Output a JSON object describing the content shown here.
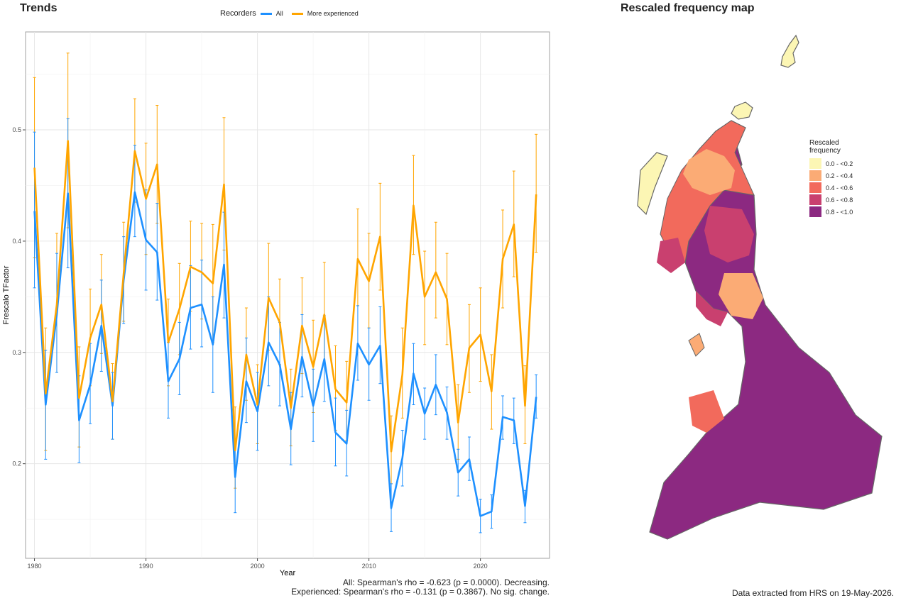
{
  "trends": {
    "title": "Trends",
    "legend_title": "Recorders",
    "series_all": "All",
    "series_exp": "More experienced"
  },
  "map": {
    "title": "Rescaled frequency map",
    "legend_title_line1": "Rescaled",
    "legend_title_line2": "frequency",
    "legend": [
      {
        "label": "0.0 - <0.2",
        "color": "#fcf6b4"
      },
      {
        "label": "0.2 - <0.4",
        "color": "#fbab75"
      },
      {
        "label": "0.4 - <0.6",
        "color": "#f26a5c"
      },
      {
        "label": "0.6 - <0.8",
        "color": "#c9406f"
      },
      {
        "label": "0.8 - <1.0",
        "color": "#8c2981"
      }
    ]
  },
  "footer": {
    "stats_all": "All: Spearman's rho = -0.623 (p = 0.0000). Decreasing.",
    "stats_exp": "Experienced: Spearman's rho = -0.131 (p = 0.3867). No sig. change.",
    "extracted": "Data extracted from HRS on 19-May-2026."
  },
  "chart_data": {
    "type": "line",
    "xlabel": "Year",
    "ylabel": "Frescalo TFactor",
    "xlim": [
      1979.2,
      2026.2
    ],
    "ylim": [
      0.115,
      0.588
    ],
    "x_ticks": [
      1980,
      1990,
      2000,
      2010,
      2020
    ],
    "y_ticks": [
      0.2,
      0.3,
      0.4,
      0.5
    ],
    "x": [
      1980,
      1981,
      1982,
      1983,
      1984,
      1985,
      1986,
      1987,
      1988,
      1989,
      1990,
      1991,
      1992,
      1993,
      1994,
      1995,
      1996,
      1997,
      1998,
      1999,
      2000,
      2001,
      2002,
      2003,
      2004,
      2005,
      2006,
      2007,
      2008,
      2009,
      2010,
      2011,
      2012,
      2013,
      2014,
      2015,
      2016,
      2017,
      2018,
      2019,
      2020,
      2021,
      2022,
      2023,
      2024,
      2025
    ],
    "series": [
      {
        "name": "All",
        "color": "#1e90ff",
        "values": [
          0.427,
          0.253,
          0.334,
          0.443,
          0.239,
          0.271,
          0.324,
          0.252,
          0.365,
          0.444,
          0.401,
          0.39,
          0.274,
          0.294,
          0.34,
          0.343,
          0.307,
          0.379,
          0.188,
          0.274,
          0.247,
          0.309,
          0.289,
          0.231,
          0.296,
          0.252,
          0.294,
          0.228,
          0.218,
          0.308,
          0.289,
          0.306,
          0.16,
          0.205,
          0.281,
          0.245,
          0.271,
          0.246,
          0.192,
          0.204,
          0.153,
          0.157,
          0.242,
          0.239,
          0.162,
          0.26
        ],
        "lower": [
          0.358,
          0.204,
          0.282,
          0.376,
          0.201,
          0.236,
          0.283,
          0.222,
          0.326,
          0.404,
          0.356,
          0.347,
          0.241,
          0.262,
          0.303,
          0.305,
          0.264,
          0.331,
          0.156,
          0.237,
          0.212,
          0.27,
          0.252,
          0.199,
          0.26,
          0.22,
          0.256,
          0.198,
          0.189,
          0.275,
          0.257,
          0.272,
          0.139,
          0.18,
          0.253,
          0.222,
          0.244,
          0.222,
          0.171,
          0.185,
          0.138,
          0.142,
          0.222,
          0.218,
          0.147,
          0.241
        ],
        "upper": [
          0.498,
          0.302,
          0.389,
          0.51,
          0.279,
          0.308,
          0.365,
          0.282,
          0.404,
          0.486,
          0.446,
          0.434,
          0.309,
          0.327,
          0.378,
          0.383,
          0.35,
          0.426,
          0.222,
          0.313,
          0.282,
          0.35,
          0.327,
          0.264,
          0.334,
          0.285,
          0.333,
          0.259,
          0.248,
          0.342,
          0.322,
          0.341,
          0.182,
          0.23,
          0.308,
          0.268,
          0.298,
          0.269,
          0.213,
          0.224,
          0.168,
          0.172,
          0.261,
          0.259,
          0.176,
          0.28
        ]
      },
      {
        "name": "More experienced",
        "color": "#ffa500",
        "values": [
          0.466,
          0.263,
          0.343,
          0.49,
          0.259,
          0.313,
          0.343,
          0.256,
          0.371,
          0.481,
          0.438,
          0.469,
          0.309,
          0.339,
          0.377,
          0.372,
          0.362,
          0.451,
          0.212,
          0.298,
          0.253,
          0.349,
          0.327,
          0.25,
          0.324,
          0.287,
          0.334,
          0.267,
          0.255,
          0.384,
          0.364,
          0.404,
          0.211,
          0.28,
          0.432,
          0.35,
          0.372,
          0.348,
          0.237,
          0.304,
          0.316,
          0.265,
          0.384,
          0.415,
          0.252,
          0.442
        ],
        "lower": [
          0.385,
          0.212,
          0.282,
          0.412,
          0.215,
          0.27,
          0.299,
          0.222,
          0.328,
          0.435,
          0.388,
          0.416,
          0.27,
          0.298,
          0.337,
          0.33,
          0.309,
          0.392,
          0.178,
          0.257,
          0.218,
          0.302,
          0.289,
          0.216,
          0.281,
          0.246,
          0.29,
          0.23,
          0.221,
          0.342,
          0.322,
          0.356,
          0.182,
          0.241,
          0.388,
          0.307,
          0.331,
          0.307,
          0.204,
          0.264,
          0.274,
          0.231,
          0.34,
          0.368,
          0.218,
          0.39
        ],
        "upper": [
          0.547,
          0.322,
          0.407,
          0.569,
          0.305,
          0.357,
          0.388,
          0.29,
          0.417,
          0.528,
          0.488,
          0.522,
          0.348,
          0.38,
          0.418,
          0.416,
          0.415,
          0.511,
          0.251,
          0.34,
          0.289,
          0.398,
          0.366,
          0.285,
          0.367,
          0.329,
          0.381,
          0.306,
          0.292,
          0.429,
          0.407,
          0.452,
          0.243,
          0.322,
          0.477,
          0.391,
          0.417,
          0.389,
          0.271,
          0.343,
          0.358,
          0.298,
          0.428,
          0.463,
          0.288,
          0.496
        ]
      }
    ]
  }
}
